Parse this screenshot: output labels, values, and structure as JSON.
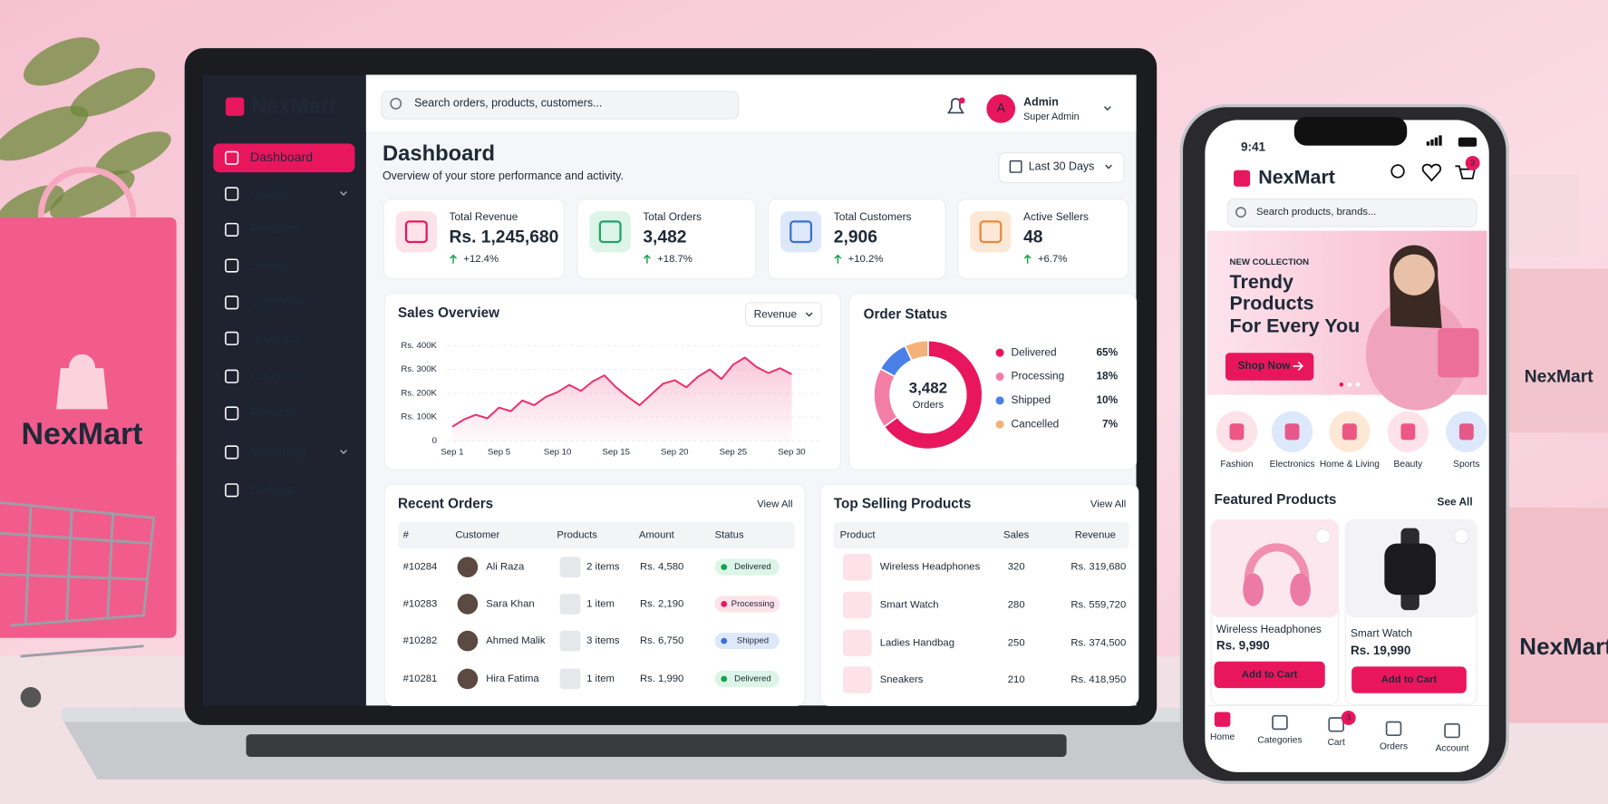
{
  "background": {
    "bag_label": "NexMart",
    "box_labels": [
      "NexMart",
      "NexMart"
    ]
  },
  "laptop": {
    "sidebar": {
      "brand": "NexMart",
      "menu": [
        "Dashboard",
        "Orders",
        "Products",
        "Sellers",
        "Customers",
        "Analytics",
        "Coupons",
        "Payouts",
        "Marketing",
        "Settings"
      ]
    },
    "topbar": {
      "search": "Search orders, products, customers...",
      "avatar": "A",
      "user": "Admin",
      "role": "Super Admin"
    },
    "header": {
      "title": "Dashboard",
      "subtitle": "Overview of your store performance and activity.",
      "range": "Last 30 Days"
    },
    "stats": [
      {
        "label": "Total Revenue",
        "value": "Rs. 1,245,680",
        "change": "+12.4%"
      },
      {
        "label": "Total Orders",
        "value": "3,482",
        "change": "+18.7%"
      },
      {
        "label": "Total Customers",
        "value": "2,906",
        "change": "+10.2%"
      },
      {
        "label": "Active Sellers",
        "value": "48",
        "change": "+6.7%"
      }
    ],
    "sales_selector": "Revenue",
    "recent_orders": {
      "title": "Recent Orders",
      "link": "View All",
      "columns": [
        "#",
        "Customer",
        "Products",
        "Amount",
        "Status"
      ],
      "rows": [
        [
          "#10284",
          "Ali Raza",
          "2 items",
          "Rs. 4,580",
          "Delivered"
        ],
        [
          "#10283",
          "Sara Khan",
          "1 item",
          "Rs. 2,190",
          "Processing"
        ],
        [
          "#10282",
          "Ahmed Malik",
          "3 items",
          "Rs. 6,750",
          "Shipped"
        ],
        [
          "#10281",
          "Hira Fatima",
          "1 item",
          "Rs. 1,990",
          "Delivered"
        ]
      ]
    },
    "top_products": {
      "title": "Top Selling Products",
      "link": "View All",
      "columns": [
        "Product",
        "Sales",
        "Revenue"
      ],
      "rows": [
        [
          "Wireless Headphones",
          320,
          "Rs. 319,680"
        ],
        [
          "Smart Watch",
          280,
          "Rs. 559,720"
        ],
        [
          "Ladies Handbag",
          250,
          "Rs. 374,500"
        ],
        [
          "Sneakers",
          210,
          "Rs. 418,950"
        ]
      ]
    }
  },
  "chart_data": [
    {
      "type": "line",
      "title": "Sales Overview",
      "categories": [
        "Sep 1",
        null,
        null,
        null,
        "Sep 5",
        null,
        null,
        null,
        null,
        "Sep 10",
        null,
        null,
        null,
        null,
        "Sep 15",
        null,
        null,
        null,
        null,
        "Sep 20",
        null,
        null,
        null,
        null,
        "Sep 25",
        null,
        null,
        null,
        null,
        "Sep 30"
      ],
      "values": [
        60000,
        90000,
        110000,
        95000,
        140000,
        125000,
        170000,
        150000,
        185000,
        205000,
        235000,
        210000,
        250000,
        275000,
        225000,
        185000,
        150000,
        195000,
        240000,
        255000,
        225000,
        270000,
        300000,
        260000,
        320000,
        350000,
        310000,
        285000,
        305000,
        280000
      ],
      "color": "#e8336d",
      "ylim": [
        0,
        400000
      ],
      "yticks": [
        0,
        {
          "value": 100000,
          "label": "Rs. 100K"
        },
        {
          "value": 200000,
          "label": "Rs. 200K"
        },
        {
          "value": 300000,
          "label": "Rs. 300K"
        },
        {
          "value": 400000,
          "label": "Rs. 400K"
        }
      ],
      "grid": true
    },
    {
      "type": "pie",
      "title": "Order Status",
      "center_value": "3,482",
      "center_label": "Orders",
      "categories": [
        "Delivered",
        "Processing",
        "Shipped",
        "Cancelled"
      ],
      "values": [
        65,
        18,
        10,
        7
      ],
      "value_labels": [
        "65%",
        "18%",
        "10%",
        "7%"
      ],
      "colors": [
        "#e8175d",
        "#f27ea5",
        "#4a80e8",
        "#f4b27a"
      ]
    }
  ],
  "phone": {
    "time": "9:41",
    "brand": "NexMart",
    "cart_badge": "3",
    "search": "Search products, brands...",
    "banner": {
      "eyebrow": "NEW COLLECTION",
      "headline": [
        "Trendy",
        "Products",
        "For Every You"
      ],
      "button": "Shop Now"
    },
    "categories": [
      "Fashion",
      "Electronics",
      "Home & Living",
      "Beauty",
      "Sports"
    ],
    "featured": {
      "title": "Featured Products",
      "link": "See All",
      "products": [
        {
          "name": "Wireless Headphones",
          "price": "Rs. 9,990",
          "button": "Add to Cart"
        },
        {
          "name": "Smart Watch",
          "price": "Rs. 19,990",
          "button": "Add to Cart"
        }
      ]
    },
    "nav": [
      "Home",
      "Categories",
      "Cart",
      "Orders",
      "Account"
    ],
    "nav_badge": "3"
  }
}
